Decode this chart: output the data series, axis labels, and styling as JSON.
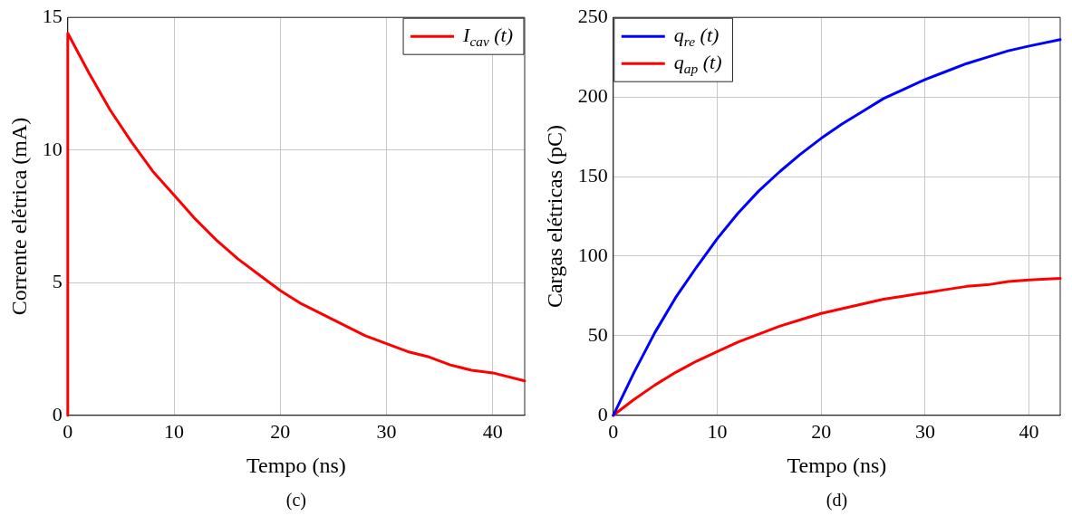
{
  "chart_data": [
    {
      "type": "line",
      "xlabel": "Tempo (ns)",
      "ylabel": "Corrente elétrica (mA)",
      "annotations": [
        "(c)"
      ],
      "x": [
        0,
        0,
        2,
        4,
        6,
        8,
        10,
        12,
        14,
        16,
        18,
        20,
        22,
        24,
        26,
        28,
        30,
        32,
        34,
        36,
        38,
        40,
        43
      ],
      "series": [
        {
          "name": "I$_{cav}$ (t)",
          "color": "#ff0000",
          "values": [
            0,
            14.4,
            12.9,
            11.5,
            10.3,
            9.2,
            8.3,
            7.4,
            6.6,
            5.9,
            5.3,
            4.7,
            4.2,
            3.8,
            3.4,
            3.0,
            2.7,
            2.4,
            2.2,
            1.9,
            1.7,
            1.6,
            1.3
          ]
        }
      ],
      "xlim": [
        0,
        43
      ],
      "xticks": [
        0,
        10,
        20,
        30,
        40
      ],
      "ylim": [
        0,
        15
      ],
      "yticks": [
        0,
        5,
        10,
        15
      ],
      "grid": true,
      "legend": "top right",
      "marker": "none",
      "line_style": "solid"
    },
    {
      "type": "line",
      "xlabel": "Tempo (ns)",
      "ylabel": "Cargas elétricas (pC)",
      "annotations": [
        "(d)"
      ],
      "x": [
        0,
        2,
        4,
        6,
        8,
        10,
        12,
        14,
        16,
        18,
        20,
        22,
        24,
        26,
        28,
        30,
        32,
        34,
        36,
        38,
        40,
        43
      ],
      "series": [
        {
          "name": "q$_{re}$ (t)",
          "color": "#0000ff",
          "values": [
            0,
            27,
            52,
            74,
            93,
            111,
            127,
            141,
            153,
            164,
            174,
            183,
            191,
            199,
            205,
            211,
            216,
            221,
            225,
            229,
            232,
            236
          ]
        },
        {
          "name": "q$_{ap}$ (t)",
          "color": "#ff0000",
          "values": [
            0,
            10,
            19,
            27,
            34,
            40,
            46,
            51,
            56,
            60,
            64,
            67,
            70,
            73,
            75,
            77,
            79,
            81,
            82,
            84,
            85,
            86
          ]
        }
      ],
      "xlim": [
        0,
        43
      ],
      "xticks": [
        0,
        10,
        20,
        30,
        40
      ],
      "ylim": [
        0,
        250
      ],
      "yticks": [
        0,
        50,
        100,
        150,
        200,
        250
      ],
      "grid": true,
      "legend": "top left",
      "marker": "none",
      "line_style": "solid"
    }
  ]
}
